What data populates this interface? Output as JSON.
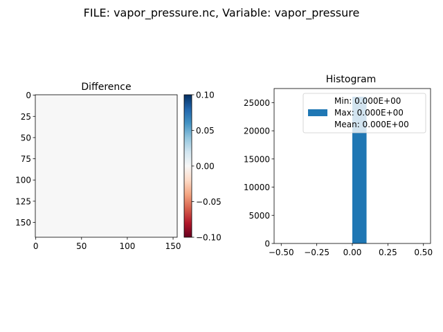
{
  "suptitle": "FILE: vapor_pressure.nc, Variable: vapor_pressure",
  "chart_data": [
    {
      "type": "heatmap",
      "title": "Difference",
      "xlabel": "",
      "ylabel": "",
      "grid_shape": [
        168,
        155
      ],
      "value": 0.0,
      "x_ticks": [
        0,
        50,
        100,
        150
      ],
      "x_tick_labels": [
        "0",
        "50",
        "100",
        "150"
      ],
      "y_ticks": [
        0,
        25,
        50,
        75,
        100,
        125,
        150
      ],
      "y_tick_labels": [
        "0",
        "25",
        "50",
        "75",
        "100",
        "125",
        "150"
      ],
      "colormap": "RdBu",
      "colorbar": {
        "vmin": -0.1,
        "vmax": 0.1,
        "ticks": [
          0.1,
          0.05,
          0.0,
          -0.05,
          -0.1
        ],
        "tick_labels": [
          "0.10",
          "0.05",
          "0.00",
          "−0.05",
          "−0.10"
        ],
        "colors": [
          "#67001f",
          "#b2182b",
          "#d6604d",
          "#f4a582",
          "#fddbc7",
          "#f7f7f7",
          "#d1e5f0",
          "#92c5de",
          "#4393c3",
          "#2166ac",
          "#053061"
        ]
      },
      "fill_color": "#f7f7f7"
    },
    {
      "type": "bar",
      "title": "Histogram",
      "xlabel": "",
      "ylabel": "",
      "xlim": [
        -0.55,
        0.55
      ],
      "ylim": [
        0,
        27500
      ],
      "bins": [
        {
          "x0": 0.0,
          "x1": 0.1,
          "count": 26040
        }
      ],
      "x_ticks": [
        -0.5,
        -0.25,
        0.0,
        0.25,
        0.5
      ],
      "x_tick_labels": [
        "−0.50",
        "−0.25",
        "0.00",
        "0.25",
        "0.50"
      ],
      "y_ticks": [
        0,
        5000,
        10000,
        15000,
        20000,
        25000
      ],
      "y_tick_labels": [
        "0",
        "5000",
        "10000",
        "15000",
        "20000",
        "25000"
      ],
      "bar_color": "#1f77b4",
      "legend": {
        "placement": "upper right",
        "lines": [
          "Min: 0.000E+00",
          "Max: 0.000E+00",
          "Mean: 0.000E+00"
        ]
      }
    }
  ]
}
